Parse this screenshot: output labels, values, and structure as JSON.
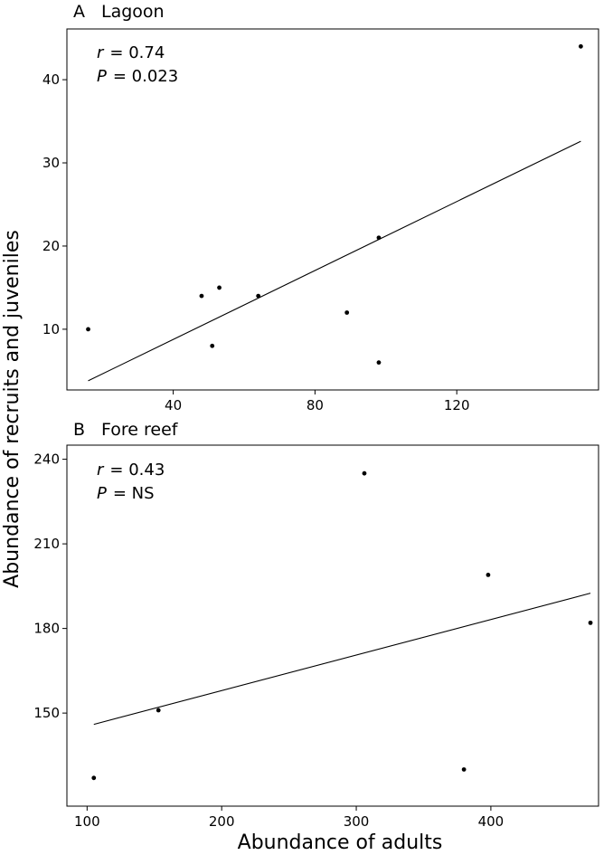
{
  "xlabel": "Abundance of adults",
  "ylabel": "Abundance of recruits and juveniles",
  "chart_data": [
    {
      "type": "scatter",
      "panel_letter": "A",
      "title": "Lagoon",
      "stats": {
        "r_symbol": "r",
        "r_value": "= 0.74",
        "p_symbol": "P",
        "p_value": "= 0.023"
      },
      "xlim": [
        10,
        160
      ],
      "ylim": [
        2.7,
        46.1
      ],
      "xticks": [
        40,
        80,
        120
      ],
      "yticks": [
        10,
        20,
        30,
        40
      ],
      "points": [
        {
          "x": 16,
          "y": 10
        },
        {
          "x": 48,
          "y": 14
        },
        {
          "x": 51,
          "y": 8
        },
        {
          "x": 53,
          "y": 15
        },
        {
          "x": 64,
          "y": 14
        },
        {
          "x": 89,
          "y": 12
        },
        {
          "x": 98,
          "y": 21
        },
        {
          "x": 98,
          "y": 6
        },
        {
          "x": 155,
          "y": 44
        }
      ],
      "fit": {
        "x": [
          16,
          155
        ],
        "y": [
          3.8,
          32.6
        ]
      }
    },
    {
      "type": "scatter",
      "panel_letter": "B",
      "title": "Fore reef",
      "stats": {
        "r_symbol": "r",
        "r_value": "= 0.43",
        "p_symbol": "P",
        "p_value": "= NS"
      },
      "xlim": [
        85,
        480
      ],
      "ylim": [
        117,
        245
      ],
      "xticks": [
        100,
        200,
        300,
        400
      ],
      "yticks": [
        150,
        180,
        210,
        240
      ],
      "points": [
        {
          "x": 105,
          "y": 127
        },
        {
          "x": 153,
          "y": 151
        },
        {
          "x": 306,
          "y": 235
        },
        {
          "x": 380,
          "y": 130
        },
        {
          "x": 398,
          "y": 199
        },
        {
          "x": 474,
          "y": 182
        }
      ],
      "fit": {
        "x": [
          105,
          474
        ],
        "y": [
          146,
          192.5
        ]
      }
    }
  ]
}
